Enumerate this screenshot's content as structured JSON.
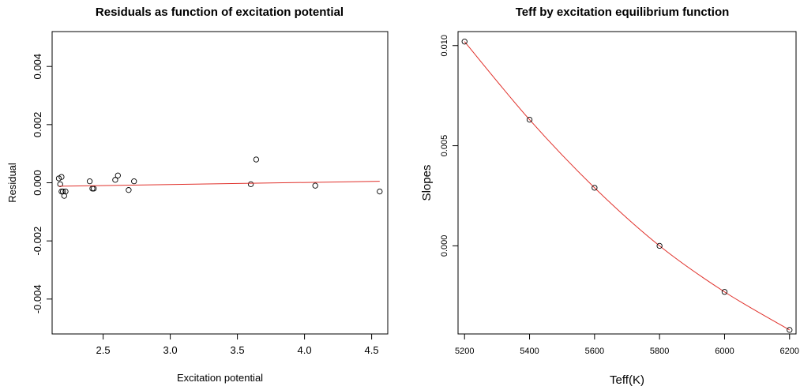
{
  "chart_data": [
    {
      "type": "scatter",
      "title": "Residuals as function of excitation potential",
      "xlabel": "Excitation potential",
      "ylabel": "Residual",
      "xlim": [
        2.12,
        4.62
      ],
      "ylim": [
        -0.0052,
        0.0052
      ],
      "x_ticks": [
        2.5,
        3.0,
        3.5,
        4.0,
        4.5
      ],
      "x_tick_labels": [
        "2.5",
        "3.0",
        "3.5",
        "4.0",
        "4.5"
      ],
      "y_ticks": [
        -0.004,
        -0.002,
        0.0,
        0.002,
        0.004
      ],
      "y_tick_labels": [
        "-0.004",
        "-0.002",
        "0.000",
        "0.002",
        "0.004"
      ],
      "grid": false,
      "series": [
        {
          "kind": "points",
          "x": [
            2.17,
            2.18,
            2.19,
            2.19,
            2.2,
            2.21,
            2.22,
            2.4,
            2.42,
            2.43,
            2.59,
            2.61,
            2.69,
            2.73,
            3.6,
            3.64,
            4.08,
            4.56
          ],
          "y": [
            0.00015,
            -5e-05,
            0.0002,
            -0.0003,
            -0.0003,
            -0.00045,
            -0.0003,
            5e-05,
            -0.0002,
            -0.0002,
            0.0001,
            0.00025,
            -0.00025,
            5e-05,
            -5e-05,
            0.0008,
            -0.0001,
            -0.0003
          ]
        },
        {
          "kind": "fit-line",
          "color": "#e0302a",
          "x": [
            2.17,
            4.56
          ],
          "y": [
            -0.00012,
            5e-05
          ]
        }
      ]
    },
    {
      "type": "line",
      "title": "Teff by excitation equilibrium function",
      "xlabel": "Teff(K)",
      "ylabel": "Slopes",
      "xlim": [
        5180,
        6220
      ],
      "ylim": [
        -0.0044,
        0.0107
      ],
      "x_ticks": [
        5200,
        5400,
        5600,
        5800,
        6000,
        6200
      ],
      "x_tick_labels": [
        "5200",
        "5400",
        "5600",
        "5800",
        "6000",
        "6200"
      ],
      "y_ticks": [
        0.0,
        0.005,
        0.01
      ],
      "y_tick_labels": [
        "0.000",
        "0.005",
        "0.010"
      ],
      "grid": false,
      "series": [
        {
          "kind": "points-and-curve",
          "color": "#e0302a",
          "x": [
            5200,
            5400,
            5600,
            5800,
            6000,
            6200
          ],
          "y": [
            0.0102,
            0.0063,
            0.0029,
            0.0,
            -0.0023,
            -0.0042
          ]
        }
      ]
    }
  ]
}
